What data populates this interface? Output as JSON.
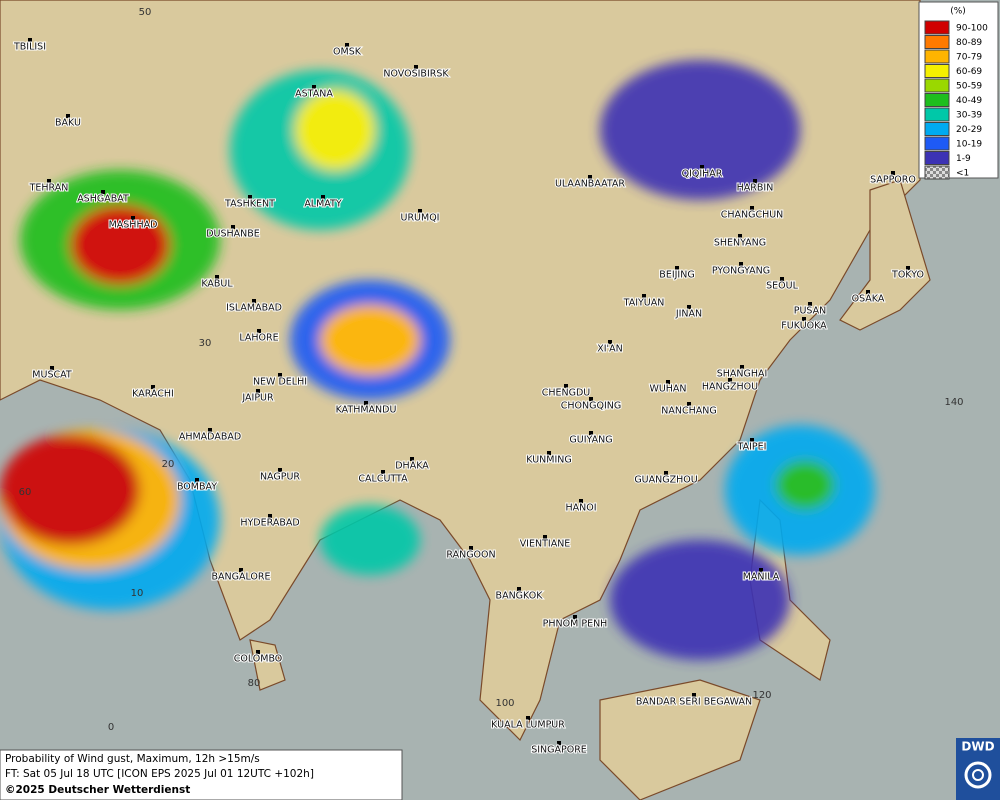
{
  "legend": {
    "title": "(%)",
    "items": [
      {
        "label": "90-100",
        "color": "#d00000"
      },
      {
        "label": "80-89",
        "color": "#ff7a00"
      },
      {
        "label": "70-79",
        "color": "#ffb400"
      },
      {
        "label": "60-69",
        "color": "#f5f000"
      },
      {
        "label": "50-59",
        "color": "#9ad800"
      },
      {
        "label": "40-49",
        "color": "#1ebe1e"
      },
      {
        "label": "30-39",
        "color": "#00c8a8"
      },
      {
        "label": "20-29",
        "color": "#00aaf0"
      },
      {
        "label": "10-19",
        "color": "#1e5af5"
      },
      {
        "label": "1-9",
        "color": "#3c32b4"
      },
      {
        "label": "<1",
        "color": "checker"
      }
    ]
  },
  "cities": [
    "OMSK",
    "NOVOSIBIRSK",
    "ASTANA",
    "TBILISI",
    "BAKU",
    "TEHRAN",
    "ASHGABAT",
    "MASHHAD",
    "TASHKENT",
    "ALMATY",
    "URUMQI",
    "DUSHANBE",
    "KABUL",
    "ISLAMABAD",
    "LAHORE",
    "NEW DELHI",
    "JAIPUR",
    "KARACHI",
    "MUSCAT",
    "AHMADABAD",
    "BOMBAY",
    "NAGPUR",
    "HYDERABAD",
    "BANGALORE",
    "COLOMBO",
    "KATHMANDU",
    "DHAKA",
    "CALCUTTA",
    "ULAANBAATAR",
    "QIQIHAR",
    "HARBIN",
    "CHANGCHUN",
    "SHENYANG",
    "BEIJING",
    "PYONGYANG",
    "SEOUL",
    "SAPPORO",
    "TOKYO",
    "OSAKA",
    "PUSAN",
    "FUKUOKA",
    "TAIYUAN",
    "JINAN",
    "XI'AN",
    "SHANGHAI",
    "HANGZHOU",
    "WUHAN",
    "CHENGDU",
    "CHONGQING",
    "NANCHANG",
    "GUIYANG",
    "TAIPEI",
    "KUNMING",
    "GUANGZHOU",
    "HANOI",
    "VIENTIANE",
    "RANGOON",
    "BANGKOK",
    "MANILA",
    "PHNOM PENH",
    "BANDAR SERI BEGAWAN",
    "KUALA LUMPUR",
    "SINGAPORE"
  ],
  "grid_labels": [
    "50",
    "30",
    "20",
    "10",
    "0",
    "60",
    "80",
    "100",
    "120",
    "140"
  ],
  "footer": {
    "line1": "Probability of Wind gust, Maximum, 12h >15m/s",
    "line2": "FT: Sat 05 Jul 18 UTC [ICON EPS 2025 Jul 01 12UTC +102h]",
    "line3": "©2025 Deutscher Wetterdienst"
  },
  "logo": "DWD"
}
